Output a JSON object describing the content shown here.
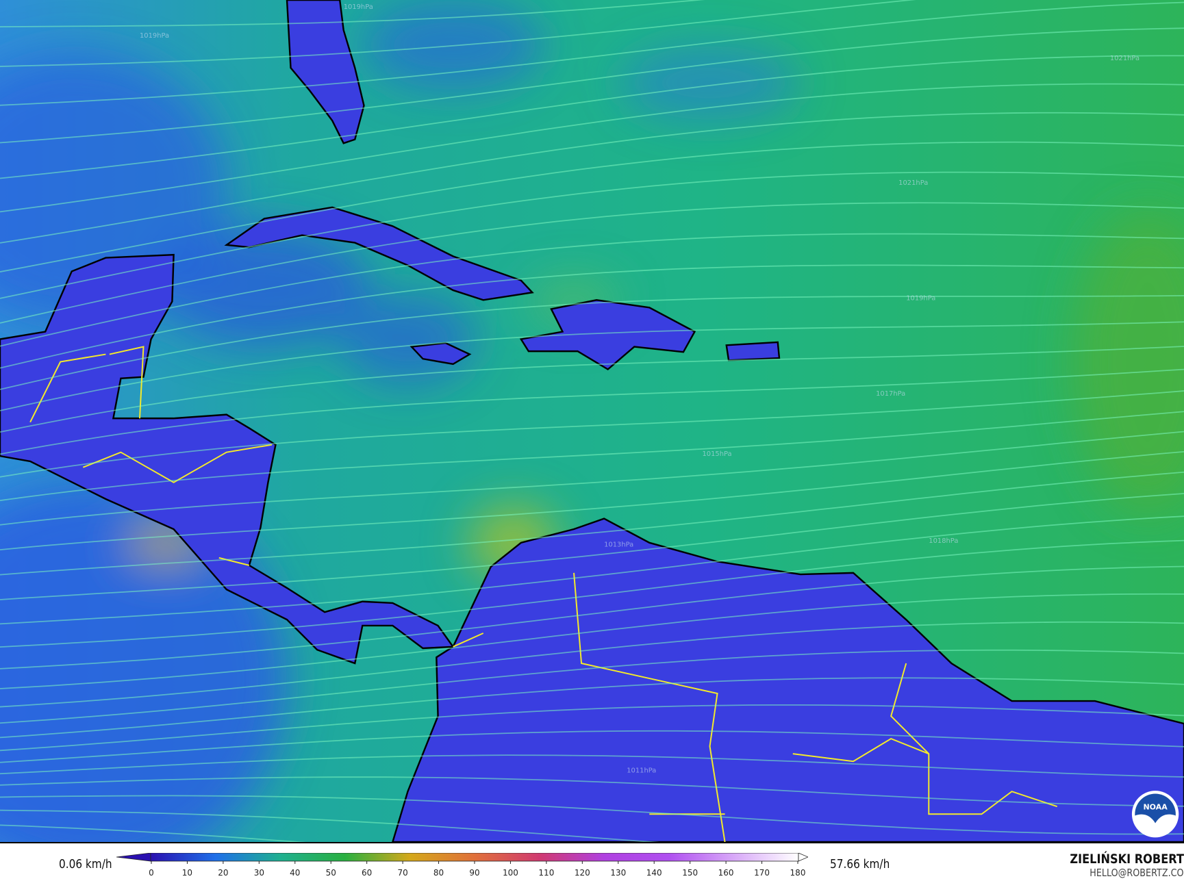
{
  "map": {
    "variable_unit": "km/h",
    "pressure_labels": [
      {
        "text": "1019hPa"
      },
      {
        "text": "1019hPa"
      },
      {
        "text": "1021hPa"
      },
      {
        "text": "1021hPa"
      },
      {
        "text": "1019hPa"
      },
      {
        "text": "1017hPa"
      },
      {
        "text": "1015hPa"
      },
      {
        "text": "1013hPa"
      },
      {
        "text": "1018hPa"
      },
      {
        "text": "1011hPa"
      }
    ],
    "logo": "NOAA",
    "colors": {
      "ocean": "#1fb084",
      "land": "#3a3ae0",
      "streamline": "#7cf5c0",
      "coastline": "#000000",
      "border": "#f4ea2a"
    }
  },
  "legend": {
    "min_label": "0.06 km/h",
    "max_label": "57.66 km/h",
    "ticks": [
      "0",
      "10",
      "20",
      "30",
      "40",
      "50",
      "60",
      "70",
      "80",
      "90",
      "100",
      "110",
      "120",
      "130",
      "140",
      "150",
      "160",
      "170",
      "180"
    ],
    "colorscale": [
      "#2a10b0",
      "#1f6fe8",
      "#1fb090",
      "#2ab040",
      "#d4a81a",
      "#e0703a",
      "#d03a70",
      "#b040e0",
      "#b050f0",
      "#d8a8f8",
      "#ffffff"
    ]
  },
  "credits": {
    "author": "ZIELIŃSKI ROBERT",
    "email": "HELLO@ROBERTZ.CO"
  }
}
